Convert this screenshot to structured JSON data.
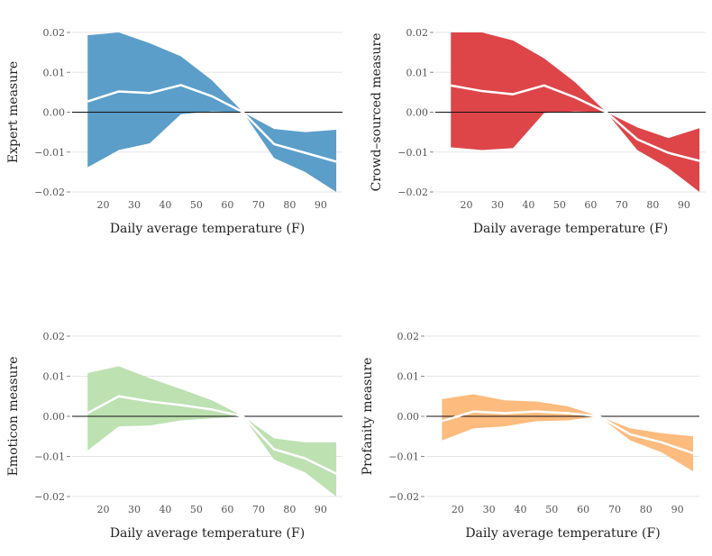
{
  "chart_data": [
    {
      "type": "area",
      "title": "",
      "xlabel": "Daily average temperature (F)",
      "ylabel": "Expert measure",
      "color": "#5b9ec9",
      "line_color": "#ffffff",
      "x": [
        15,
        25,
        35,
        45,
        55,
        65,
        75,
        85,
        95
      ],
      "xticks": [
        20,
        30,
        40,
        50,
        60,
        70,
        80,
        90
      ],
      "yticks": [
        -0.02,
        -0.01,
        0.0,
        0.01,
        0.02
      ],
      "ytick_labels": [
        "−0.02",
        "−0.01",
        "0.00",
        "0.01",
        "0.02"
      ],
      "xlim": [
        10,
        97
      ],
      "ylim": [
        -0.02,
        0.02
      ],
      "grid": true,
      "series": [
        {
          "role": "estimate",
          "values": [
            0.0027,
            0.0052,
            0.0048,
            0.0068,
            0.004,
            0.0,
            -0.008,
            -0.0102,
            -0.0124
          ]
        },
        {
          "role": "upper",
          "values": [
            0.0193,
            0.02,
            0.0173,
            0.014,
            0.008,
            0.0,
            -0.0042,
            -0.005,
            -0.0044
          ]
        },
        {
          "role": "lower",
          "values": [
            -0.0138,
            -0.0095,
            -0.0078,
            -0.0005,
            0.0002,
            0.0,
            -0.0115,
            -0.015,
            -0.02
          ]
        }
      ]
    },
    {
      "type": "area",
      "title": "",
      "xlabel": "Daily average temperature (F)",
      "ylabel": "Crowd–sourced measure",
      "color": "#dd4549",
      "line_color": "#ffffff",
      "x": [
        15,
        25,
        35,
        45,
        55,
        65,
        75,
        85,
        95
      ],
      "xticks": [
        20,
        30,
        40,
        50,
        60,
        70,
        80,
        90
      ],
      "yticks": [
        -0.02,
        -0.01,
        0.0,
        0.01,
        0.02
      ],
      "ytick_labels": [
        "−0.02",
        "−0.01",
        "0.00",
        "0.01",
        "0.02"
      ],
      "xlim": [
        10,
        97
      ],
      "ylim": [
        -0.02,
        0.02
      ],
      "grid": true,
      "series": [
        {
          "role": "estimate",
          "values": [
            0.0067,
            0.0053,
            0.0045,
            0.0067,
            0.0037,
            0.0,
            -0.0068,
            -0.0102,
            -0.0122
          ]
        },
        {
          "role": "upper",
          "values": [
            0.02,
            0.02,
            0.018,
            0.0135,
            0.0075,
            0.0,
            -0.0038,
            -0.0065,
            -0.004
          ]
        },
        {
          "role": "lower",
          "values": [
            -0.0088,
            -0.0095,
            -0.009,
            -0.0002,
            0.0002,
            0.0,
            -0.0095,
            -0.014,
            -0.02
          ]
        }
      ]
    },
    {
      "type": "area",
      "title": "",
      "xlabel": "Daily average temperature (F)",
      "ylabel": "Emoticon measure",
      "color": "#bde1b1",
      "line_color": "#ffffff",
      "x": [
        15,
        25,
        35,
        45,
        55,
        65,
        75,
        85,
        95
      ],
      "xticks": [
        20,
        30,
        40,
        50,
        60,
        70,
        80,
        90
      ],
      "yticks": [
        -0.02,
        -0.01,
        0.0,
        0.01,
        0.02
      ],
      "ytick_labels": [
        "−0.02",
        "−0.01",
        "0.00",
        "0.01",
        "0.02"
      ],
      "xlim": [
        10,
        97
      ],
      "ylim": [
        -0.02,
        0.02
      ],
      "grid": true,
      "series": [
        {
          "role": "estimate",
          "values": [
            0.0008,
            0.005,
            0.0037,
            0.0028,
            0.0017,
            0.0,
            -0.0082,
            -0.0105,
            -0.0143
          ]
        },
        {
          "role": "upper",
          "values": [
            0.0108,
            0.0125,
            0.0095,
            0.0068,
            0.004,
            0.0,
            -0.0055,
            -0.0065,
            -0.0065
          ]
        },
        {
          "role": "lower",
          "values": [
            -0.0085,
            -0.0025,
            -0.0023,
            -0.001,
            -0.0005,
            0.0,
            -0.0108,
            -0.014,
            -0.02
          ]
        }
      ]
    },
    {
      "type": "area",
      "title": "",
      "xlabel": "Daily average temperature (F)",
      "ylabel": "Profanity measure",
      "color": "#fdbb7e",
      "line_color": "#ffffff",
      "x": [
        15,
        25,
        35,
        45,
        55,
        65,
        75,
        85,
        95
      ],
      "xticks": [
        20,
        30,
        40,
        50,
        60,
        70,
        80,
        90
      ],
      "yticks": [
        -0.02,
        -0.01,
        0.0,
        0.01,
        0.02
      ],
      "ytick_labels": [
        "−0.02",
        "−0.01",
        "0.00",
        "0.01",
        "0.02"
      ],
      "xlim": [
        10,
        97
      ],
      "ylim": [
        -0.02,
        0.02
      ],
      "grid": true,
      "series": [
        {
          "role": "estimate",
          "values": [
            -0.0012,
            0.0012,
            0.0008,
            0.0012,
            0.0008,
            0.0,
            -0.0045,
            -0.0065,
            -0.0092
          ]
        },
        {
          "role": "upper",
          "values": [
            0.0043,
            0.0055,
            0.004,
            0.0037,
            0.0025,
            0.0,
            -0.003,
            -0.0042,
            -0.005
          ]
        },
        {
          "role": "lower",
          "values": [
            -0.006,
            -0.003,
            -0.0025,
            -0.0012,
            -0.001,
            0.0,
            -0.006,
            -0.009,
            -0.0137
          ]
        }
      ]
    }
  ]
}
